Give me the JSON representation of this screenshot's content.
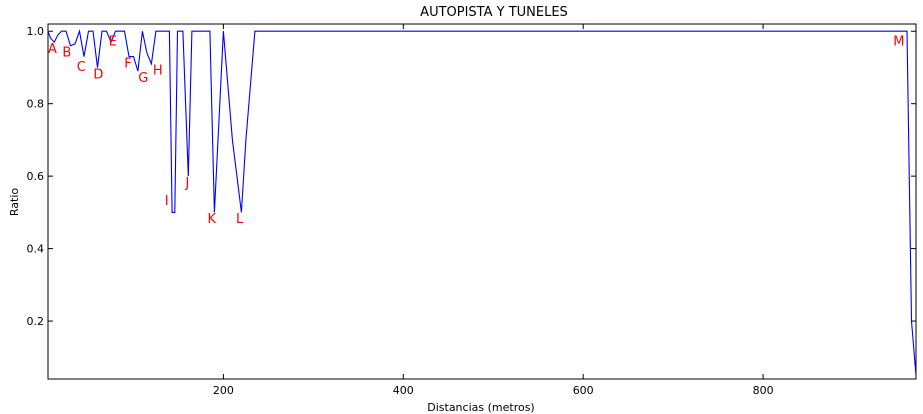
{
  "chart_data": {
    "type": "line",
    "title": "AUTOPISTA Y TUNELES",
    "xlabel": "Distancias (metros)",
    "ylabel": "Ratio",
    "xlim": [
      5,
      970
    ],
    "ylim": [
      0.04,
      1.02
    ],
    "xticks": [
      200,
      400,
      600,
      800
    ],
    "xtick_labels": [
      "200",
      "400",
      "600",
      "800"
    ],
    "yticks": [
      0.2,
      0.4,
      0.6,
      0.8,
      1.0
    ],
    "ytick_labels": [
      "0.2",
      "0.4",
      "0.6",
      "0.8",
      "1.0"
    ],
    "grid": false,
    "line_color": "#0000ff",
    "annotation_color": "#ff0000",
    "series": [
      {
        "x": [
          5,
          8,
          12,
          16,
          20,
          25,
          30,
          35,
          40,
          45,
          50,
          55,
          60,
          65,
          70,
          75,
          80,
          85,
          90,
          95,
          100,
          105,
          110,
          115,
          120,
          125,
          130,
          135,
          140,
          143,
          146,
          149,
          152,
          155,
          158,
          161,
          165,
          169,
          173,
          177,
          181,
          185,
          190,
          195,
          200,
          205,
          210,
          215,
          220,
          225,
          230,
          235,
          240,
          300,
          400,
          500,
          600,
          700,
          800,
          900,
          960,
          965,
          970
        ],
        "y": [
          1.0,
          0.98,
          0.97,
          0.99,
          1.0,
          1.0,
          0.96,
          0.965,
          1.0,
          0.93,
          1.0,
          1.0,
          0.9,
          1.0,
          1.0,
          0.97,
          1.0,
          1.0,
          1.0,
          0.93,
          0.93,
          0.89,
          1.0,
          0.94,
          0.91,
          1.0,
          1.0,
          1.0,
          1.0,
          0.5,
          0.5,
          1.0,
          1.0,
          1.0,
          0.8,
          0.6,
          1.0,
          1.0,
          1.0,
          1.0,
          1.0,
          1.0,
          0.5,
          0.75,
          1.0,
          0.85,
          0.7,
          0.6,
          0.5,
          0.7,
          0.85,
          1.0,
          1.0,
          1.0,
          1.0,
          1.0,
          1.0,
          1.0,
          1.0,
          1.0,
          1.0,
          0.2,
          0.05
        ]
      }
    ],
    "annotations": [
      {
        "text": "A",
        "x": 10,
        "y": 0.94
      },
      {
        "text": "B",
        "x": 26,
        "y": 0.93
      },
      {
        "text": "C",
        "x": 42,
        "y": 0.89
      },
      {
        "text": "D",
        "x": 61,
        "y": 0.87
      },
      {
        "text": "E",
        "x": 77,
        "y": 0.96
      },
      {
        "text": "F",
        "x": 94,
        "y": 0.9
      },
      {
        "text": "G",
        "x": 111,
        "y": 0.86
      },
      {
        "text": "H",
        "x": 127,
        "y": 0.88
      },
      {
        "text": "I",
        "x": 137,
        "y": 0.52
      },
      {
        "text": "J",
        "x": 160,
        "y": 0.57
      },
      {
        "text": "K",
        "x": 187,
        "y": 0.47
      },
      {
        "text": "L",
        "x": 218,
        "y": 0.47
      },
      {
        "text": "M",
        "x": 951,
        "y": 0.96
      }
    ]
  }
}
